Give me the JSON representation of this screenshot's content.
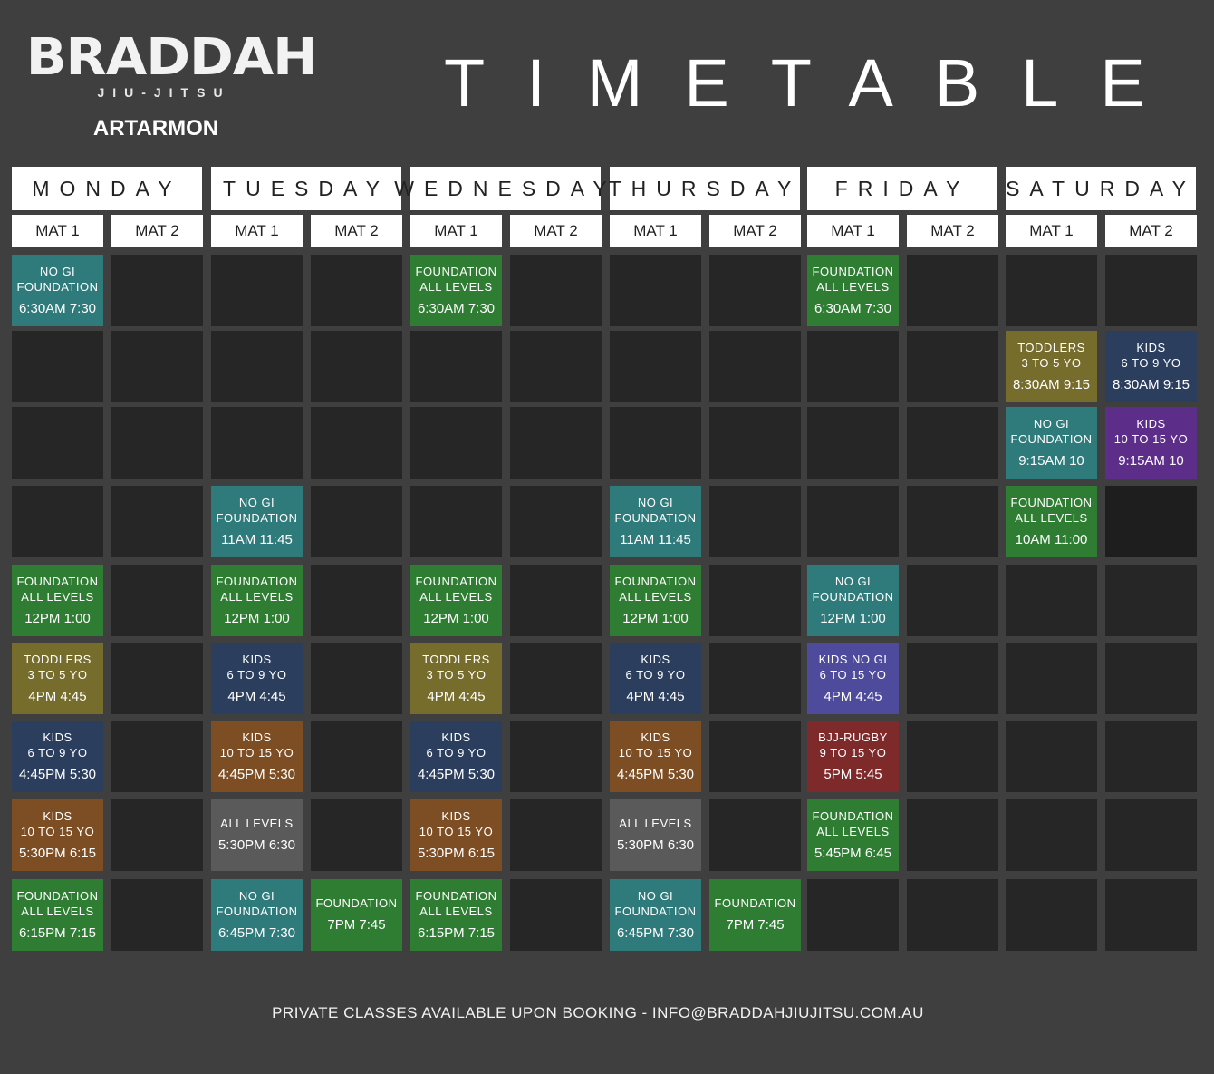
{
  "brand": {
    "name": "BRADDAH",
    "tagline": "JIU-JITSU",
    "location": "ARTARMON"
  },
  "title": "TIMETABLE",
  "footer": "PRIVATE  CLASSES AVAILABLE UPON BOOKING - INFO@BRADDAHJIUJITSU.COM.AU",
  "colors": {
    "teal": "#2f7a7a",
    "green": "#2e7d32",
    "olive": "#766c2c",
    "navy": "#2c3e5e",
    "brown": "#7d4e24",
    "gray": "#5a5a5a",
    "purple": "#5c2e8a",
    "red": "#7f2a2a",
    "kidsmix": "#4e4a9c",
    "empty": "#262626",
    "darker": "#1e1e1e"
  },
  "days": [
    {
      "name": "MONDAY",
      "mats": [
        "MAT 1",
        "MAT 2"
      ]
    },
    {
      "name": "TUESDAY",
      "mats": [
        "MAT 1",
        "MAT 2"
      ]
    },
    {
      "name": "WEDNESDAY",
      "mats": [
        "MAT 1",
        "MAT 2"
      ]
    },
    {
      "name": "THURSDAY",
      "mats": [
        "MAT 1",
        "MAT 2"
      ]
    },
    {
      "name": "FRIDAY",
      "mats": [
        "MAT 1",
        "MAT 2"
      ]
    },
    {
      "name": "SATURDAY",
      "mats": [
        "MAT 1",
        "MAT 2"
      ]
    }
  ],
  "rows": [
    [
      {
        "l1": "NO GI",
        "l2": "FOUNDATION",
        "time": "6:30AM 7:30",
        "color": "teal"
      },
      null,
      null,
      null,
      {
        "l1": "FOUNDATION",
        "l2": "ALL LEVELS",
        "time": "6:30AM 7:30",
        "color": "green"
      },
      null,
      null,
      null,
      {
        "l1": "FOUNDATION",
        "l2": "ALL LEVELS",
        "time": "6:30AM 7:30",
        "color": "green"
      },
      null,
      null,
      null
    ],
    [
      null,
      null,
      null,
      null,
      null,
      null,
      null,
      null,
      null,
      null,
      {
        "l1": "TODDLERS",
        "l2": "3 TO 5 YO",
        "time": "8:30AM 9:15",
        "color": "olive"
      },
      {
        "l1": "KIDS",
        "l2": "6 TO 9 YO",
        "time": "8:30AM 9:15",
        "color": "navy"
      }
    ],
    [
      null,
      null,
      null,
      null,
      null,
      null,
      null,
      null,
      null,
      null,
      {
        "l1": "NO GI",
        "l2": "FOUNDATION",
        "time": "9:15AM 10",
        "color": "teal"
      },
      {
        "l1": "KIDS",
        "l2": "10 TO 15 YO",
        "time": "9:15AM 10",
        "color": "purple"
      }
    ],
    [
      null,
      null,
      {
        "l1": "NO GI",
        "l2": "FOUNDATION",
        "time": "11AM 11:45",
        "color": "teal"
      },
      null,
      null,
      null,
      {
        "l1": "NO GI",
        "l2": "FOUNDATION",
        "time": "11AM 11:45",
        "color": "teal"
      },
      null,
      null,
      null,
      {
        "l1": "FOUNDATION",
        "l2": "ALL LEVELS",
        "time": "10AM 11:00",
        "color": "green"
      },
      {
        "l1": "",
        "l2": "",
        "time": "",
        "color": "darker"
      }
    ],
    [
      {
        "l1": "FOUNDATION",
        "l2": "ALL LEVELS",
        "time": "12PM 1:00",
        "color": "green"
      },
      null,
      {
        "l1": "FOUNDATION",
        "l2": "ALL LEVELS",
        "time": "12PM 1:00",
        "color": "green"
      },
      null,
      {
        "l1": "FOUNDATION",
        "l2": "ALL LEVELS",
        "time": "12PM 1:00",
        "color": "green"
      },
      null,
      {
        "l1": "FOUNDATION",
        "l2": "ALL LEVELS",
        "time": "12PM 1:00",
        "color": "green"
      },
      null,
      {
        "l1": "NO GI",
        "l2": "FOUNDATION",
        "time": "12PM 1:00",
        "color": "teal"
      },
      null,
      null,
      null
    ],
    [
      {
        "l1": "TODDLERS",
        "l2": "3 TO 5 YO",
        "time": "4PM 4:45",
        "color": "olive"
      },
      null,
      {
        "l1": "KIDS",
        "l2": "6 TO 9 YO",
        "time": "4PM 4:45",
        "color": "navy"
      },
      null,
      {
        "l1": "TODDLERS",
        "l2": "3 TO 5 YO",
        "time": "4PM 4:45",
        "color": "olive"
      },
      null,
      {
        "l1": "KIDS",
        "l2": "6 TO 9 YO",
        "time": "4PM 4:45",
        "color": "navy"
      },
      null,
      {
        "l1": "KIDS NO GI",
        "l2": "6 TO 15 YO",
        "time": "4PM 4:45",
        "color": "kidsmix"
      },
      null,
      null,
      null
    ],
    [
      {
        "l1": "KIDS",
        "l2": "6 TO 9 YO",
        "time": "4:45PM 5:30",
        "color": "navy"
      },
      null,
      {
        "l1": "KIDS",
        "l2": "10 TO 15 YO",
        "time": "4:45PM 5:30",
        "color": "brown"
      },
      null,
      {
        "l1": "KIDS",
        "l2": "6 TO 9 YO",
        "time": "4:45PM 5:30",
        "color": "navy"
      },
      null,
      {
        "l1": "KIDS",
        "l2": "10 TO 15 YO",
        "time": "4:45PM 5:30",
        "color": "brown"
      },
      null,
      {
        "l1": "BJJ-RUGBY",
        "l2": "9 TO 15 YO",
        "time": "5PM 5:45",
        "color": "red"
      },
      null,
      null,
      null
    ],
    [
      {
        "l1": "KIDS",
        "l2": "10 TO 15 YO",
        "time": "5:30PM 6:15",
        "color": "brown"
      },
      null,
      {
        "l1": "ALL LEVELS",
        "l2": "",
        "time": "5:30PM 6:30",
        "color": "gray"
      },
      null,
      {
        "l1": "KIDS",
        "l2": "10 TO 15 YO",
        "time": "5:30PM 6:15",
        "color": "brown"
      },
      null,
      {
        "l1": "ALL LEVELS",
        "l2": "",
        "time": "5:30PM 6:30",
        "color": "gray"
      },
      null,
      {
        "l1": "FOUNDATION",
        "l2": "ALL LEVELS",
        "time": "5:45PM 6:45",
        "color": "green"
      },
      null,
      null,
      null
    ],
    [
      {
        "l1": "FOUNDATION",
        "l2": "ALL LEVELS",
        "time": "6:15PM 7:15",
        "color": "green"
      },
      null,
      {
        "l1": "NO GI",
        "l2": "FOUNDATION",
        "time": "6:45PM 7:30",
        "color": "teal"
      },
      {
        "l1": "FOUNDATION",
        "l2": "",
        "time": "7PM 7:45",
        "color": "green"
      },
      {
        "l1": "FOUNDATION",
        "l2": "ALL LEVELS",
        "time": "6:15PM 7:15",
        "color": "green"
      },
      null,
      {
        "l1": "NO GI",
        "l2": "FOUNDATION",
        "time": "6:45PM 7:30",
        "color": "teal"
      },
      {
        "l1": "FOUNDATION",
        "l2": "",
        "time": "7PM 7:45",
        "color": "green"
      },
      null,
      null,
      null,
      null
    ]
  ]
}
